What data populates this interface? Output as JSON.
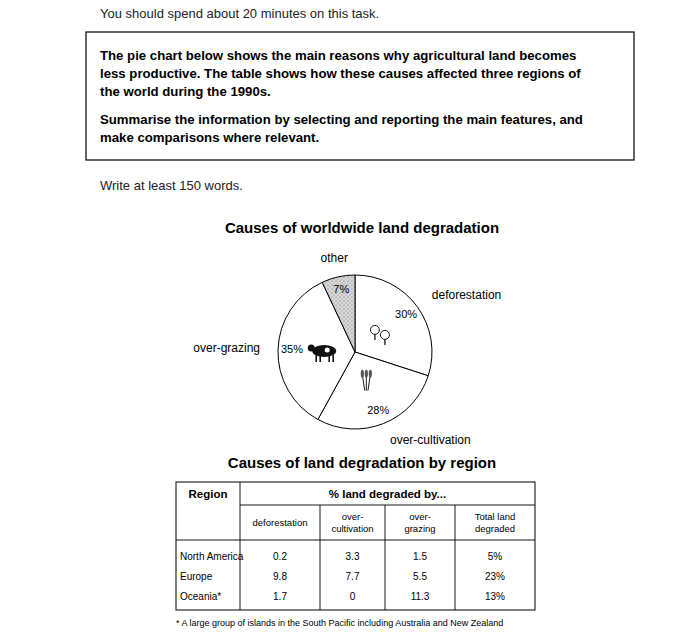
{
  "header": {
    "instruction": "You should spend about 20 minutes on this task.",
    "prompt": [
      [
        "The pie chart below shows the main reasons why agricultural land becomes",
        "less productive. The table shows how these causes affected three regions of",
        "the world during the 1990s."
      ],
      [
        "Summarise the information by selecting and reporting the main features, and",
        "make comparisons where relevant."
      ]
    ],
    "word_count": "Write at least 150 words."
  },
  "chart_data": {
    "type": "pie",
    "title": "Causes of worldwide land degradation",
    "categories": [
      "deforestation",
      "over-cultivation",
      "over-grazing",
      "other"
    ],
    "values": [
      30,
      28,
      35,
      7
    ],
    "value_labels": [
      "30%",
      "28%",
      "35%",
      "7%"
    ],
    "colors": [
      "#ffffff",
      "#ffffff",
      "#ffffff",
      "#d9d9d9"
    ],
    "data_labels": true
  },
  "table": {
    "title": "Causes of land degradation by region",
    "region_header": "Region",
    "group_header": "% land degraded by...",
    "subheaders": [
      [
        "deforestation"
      ],
      [
        "over-",
        "cultivation"
      ],
      [
        "over-",
        "grazing"
      ],
      [
        "Total land",
        "degraded"
      ]
    ],
    "rows": [
      [
        "North America",
        0.2,
        3.3,
        1.5,
        "5%"
      ],
      [
        "Europe",
        9.8,
        7.7,
        5.5,
        "23%"
      ],
      [
        "Oceania*",
        1.7,
        0,
        11.3,
        "13%"
      ]
    ],
    "footnote": "* A large group of islands in the South Pacific including Australia and New Zealand"
  }
}
